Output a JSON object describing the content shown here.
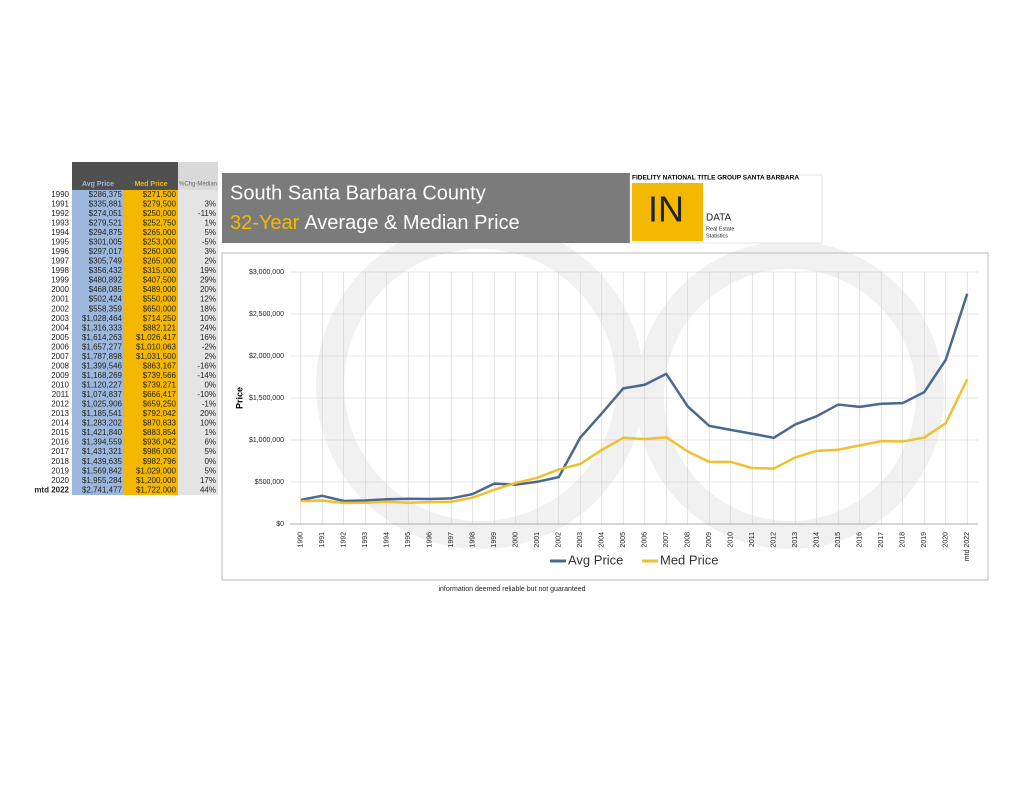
{
  "header": {
    "title": "South Santa Barbara County",
    "subtitle_highlight": "32-Year",
    "subtitle": "Average & Median Price"
  },
  "logo": {
    "company": "FIDELITY NATIONAL TITLE GROUP SANTA BARBARA",
    "mark": "IN",
    "word": "DATA",
    "line1": "Real Estate",
    "line2": "Statistics"
  },
  "table": {
    "pct_header": "%Chg-Median",
    "pct_change": [
      null,
      "3%",
      "-11%",
      "1%",
      "5%",
      "-5%",
      "3%",
      "2%",
      "19%",
      "29%",
      "20%",
      "12%",
      "18%",
      "10%",
      "24%",
      "16%",
      "-2%",
      "2%",
      "-16%",
      "-14%",
      "0%",
      "-10%",
      "-1%",
      "20%",
      "10%",
      "1%",
      "6%",
      "5%",
      "0%",
      "5%",
      "17%",
      "44%"
    ]
  },
  "footer": "information deemed reliable but not guaranteed",
  "chart_data": {
    "type": "line",
    "y_label": "Price",
    "categories": [
      "1990",
      "1991",
      "1992",
      "1993",
      "1994",
      "1995",
      "1996",
      "1997",
      "1998",
      "1999",
      "2000",
      "2001",
      "2002",
      "2003",
      "2004",
      "2005",
      "2006",
      "2007",
      "2008",
      "2009",
      "2010",
      "2011",
      "2012",
      "2013",
      "2014",
      "2015",
      "2016",
      "2017",
      "2018",
      "2019",
      "2020",
      "mtd 2022"
    ],
    "series": [
      {
        "name": "Avg Price",
        "color": "#4a6890",
        "values": [
          286375,
          335881,
          274051,
          279521,
          294875,
          301005,
          297017,
          305749,
          356432,
          480892,
          468085,
          502424,
          558359,
          1028464,
          1316333,
          1614263,
          1657277,
          1787898,
          1399546,
          1168269,
          1120227,
          1074837,
          1025906,
          1185541,
          1283202,
          1421840,
          1394559,
          1431321,
          1439635,
          1569842,
          1955284,
          2741477
        ],
        "value_labels": [
          "$286,375",
          "$335,881",
          "$274,051",
          "$279,521",
          "$294,875",
          "$301,005",
          "$297,017",
          "$305,749",
          "$356,432",
          "$480,892",
          "$468,085",
          "$502,424",
          "$558,359",
          "$1,028,464",
          "$1,316,333",
          "$1,614,263",
          "$1,657,277",
          "$1,787,898",
          "$1,399,546",
          "$1,168,269",
          "$1,120,227",
          "$1,074,837",
          "$1,025,906",
          "$1,185,541",
          "$1,283,202",
          "$1,421,840",
          "$1,394,559",
          "$1,431,321",
          "$1,439,635",
          "$1,569,842",
          "$1,955,284",
          "$2,741,477"
        ]
      },
      {
        "name": "Med Price",
        "color": "#f0c030",
        "values": [
          271500,
          279500,
          250000,
          252750,
          265000,
          253000,
          260000,
          265000,
          315000,
          407500,
          489000,
          550000,
          650000,
          714250,
          882121,
          1026417,
          1010063,
          1031500,
          863167,
          739566,
          739271,
          666417,
          659250,
          792042,
          870833,
          883854,
          936042,
          986000,
          982796,
          1029000,
          1200000,
          1722000
        ],
        "value_labels": [
          "$271,500",
          "$279,500",
          "$250,000",
          "$252,750",
          "$265,000",
          "$253,000",
          "$260,000",
          "$265,000",
          "$315,000",
          "$407,500",
          "$489,000",
          "$550,000",
          "$650,000",
          "$714,250",
          "$882,121",
          "$1,026,417",
          "$1,010,063",
          "$1,031,500",
          "$863,167",
          "$739,566",
          "$739,271",
          "$666,417",
          "$659,250",
          "$792,042",
          "$870,833",
          "$883,854",
          "$936,042",
          "$986,000",
          "$982,796",
          "$1,029,000",
          "$1,200,000",
          "$1,722,000"
        ]
      }
    ],
    "ylim": [
      0,
      3000000
    ],
    "yticks": [
      {
        "value": 0,
        "label": "$0"
      },
      {
        "value": 500000,
        "label": "$500,000"
      },
      {
        "value": 1000000,
        "label": "$1,000,000"
      },
      {
        "value": 1500000,
        "label": "$1,500,000"
      },
      {
        "value": 2000000,
        "label": "$2,000,000"
      },
      {
        "value": 2500000,
        "label": "$2,500,000"
      },
      {
        "value": 3000000,
        "label": "$3,000,000"
      }
    ],
    "grid": true,
    "legend": "bottom"
  }
}
